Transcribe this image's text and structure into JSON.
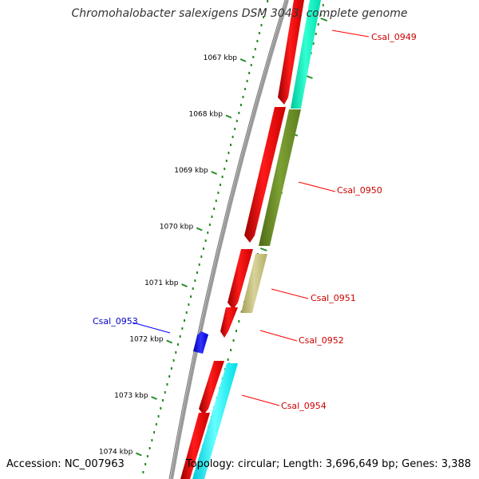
{
  "title": "Chromohalobacter salexigens DSM 3043, complete genome",
  "footer": {
    "accession": "Accession: NC_007963",
    "topology": "Topology: circular; Length: 3,696,649 bp; Genes: 3,388"
  },
  "ticks": [
    {
      "kbp": 1067,
      "label": "1067 kbp"
    },
    {
      "kbp": 1068,
      "label": "1068 kbp"
    },
    {
      "kbp": 1069,
      "label": "1069 kbp"
    },
    {
      "kbp": 1070,
      "label": "1070 kbp"
    },
    {
      "kbp": 1071,
      "label": "1071 kbp"
    },
    {
      "kbp": 1072,
      "label": "1072 kbp"
    },
    {
      "kbp": 1073,
      "label": "1073 kbp"
    },
    {
      "kbp": 1074,
      "label": "1074 kbp"
    }
  ],
  "genes": [
    {
      "name": "Csal_0949",
      "label_color": "#cc0000"
    },
    {
      "name": "Csal_0950",
      "label_color": "#cc0000"
    },
    {
      "name": "Csal_0951",
      "label_color": "#cc0000"
    },
    {
      "name": "Csal_0952",
      "label_color": "#cc0000"
    },
    {
      "name": "Csal_0953",
      "label_color": "#0000cc"
    },
    {
      "name": "Csal_0954",
      "label_color": "#cc0000"
    }
  ],
  "colors": {
    "backbone": "#808080",
    "cds": "#ff0000",
    "tick": "#228b22",
    "feature_cyan": "#00ffcc",
    "feature_olive": "#6b8e23",
    "feature_khaki": "#bdb76b",
    "feature_aqua": "#00ffff",
    "feature_blue": "#0000ff"
  }
}
